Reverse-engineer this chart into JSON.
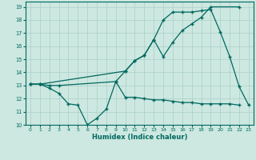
{
  "background_color": "#cce8e0",
  "grid_color": "#aacfc8",
  "line_color": "#006860",
  "xlim": [
    -0.5,
    23.5
  ],
  "ylim": [
    10,
    19.4
  ],
  "xlabel": "Humidex (Indice chaleur)",
  "xticks": [
    0,
    1,
    2,
    3,
    4,
    5,
    6,
    7,
    8,
    9,
    10,
    11,
    12,
    13,
    14,
    15,
    16,
    17,
    18,
    19,
    20,
    21,
    22,
    23
  ],
  "yticks": [
    10,
    11,
    12,
    13,
    14,
    15,
    16,
    17,
    18,
    19
  ],
  "series1_x": [
    0,
    1,
    2,
    3,
    4,
    5,
    6,
    7,
    8,
    9,
    10,
    11,
    12,
    13,
    14,
    15,
    16,
    17,
    18,
    19,
    20,
    21,
    22
  ],
  "series1_y": [
    13.1,
    13.1,
    12.8,
    12.4,
    11.6,
    11.5,
    10.0,
    10.5,
    11.2,
    13.3,
    12.1,
    12.1,
    12.0,
    11.9,
    11.9,
    11.8,
    11.7,
    11.7,
    11.6,
    11.6,
    11.6,
    11.6,
    11.5
  ],
  "series2_x": [
    0,
    1,
    2,
    3,
    9,
    10,
    11,
    12,
    13,
    14,
    15,
    16,
    17,
    18,
    19,
    22
  ],
  "series2_y": [
    13.1,
    13.1,
    13.0,
    13.0,
    13.3,
    14.1,
    14.9,
    15.3,
    16.5,
    15.2,
    16.3,
    17.2,
    17.7,
    18.2,
    19.0,
    19.0
  ],
  "series3_x": [
    0,
    1,
    10,
    11,
    12,
    13,
    14,
    15,
    16,
    17,
    18,
    19,
    20,
    21,
    22,
    23
  ],
  "series3_y": [
    13.1,
    13.1,
    14.1,
    14.9,
    15.3,
    16.5,
    18.0,
    18.6,
    18.6,
    18.6,
    18.7,
    18.8,
    17.1,
    15.2,
    12.9,
    11.5
  ]
}
